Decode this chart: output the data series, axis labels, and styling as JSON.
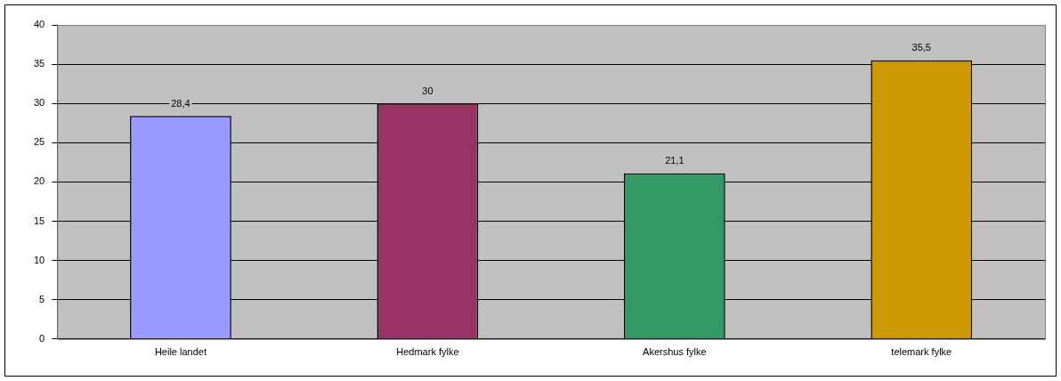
{
  "chart_data": {
    "type": "bar",
    "categories": [
      "Heile landet",
      "Hedmark fylke",
      "Akershus fylke",
      "telemark fylke"
    ],
    "values": [
      28.4,
      30,
      21.1,
      35.5
    ],
    "value_labels": [
      "28,4",
      "30",
      "21,1",
      "35,5"
    ],
    "colors": [
      "#9999ff",
      "#993366",
      "#339966",
      "#cc9900"
    ],
    "ylim": [
      0,
      40
    ],
    "yticks": [
      0,
      5,
      10,
      15,
      20,
      25,
      30,
      35,
      40
    ],
    "grid": "y",
    "legend": false
  }
}
